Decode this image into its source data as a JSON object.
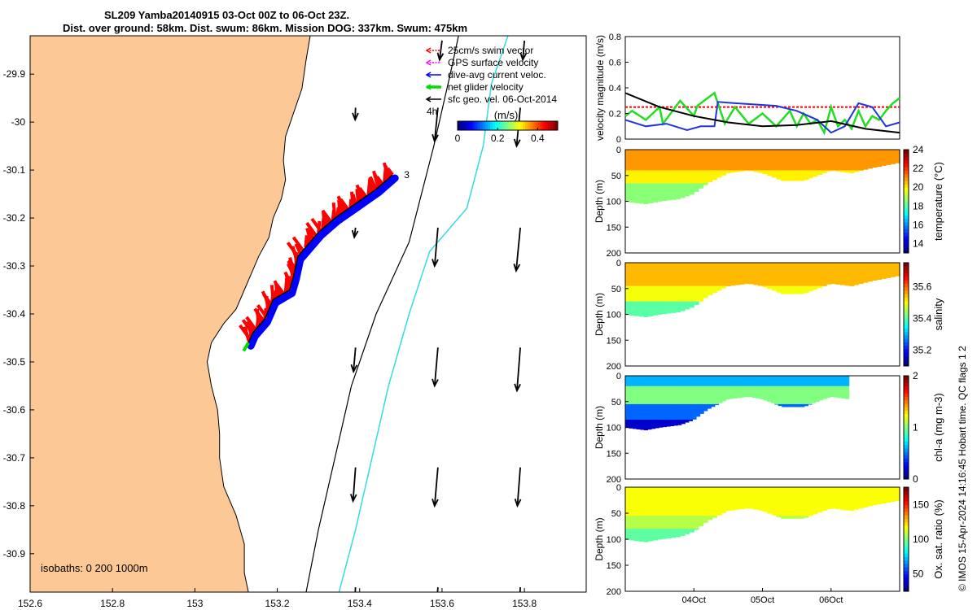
{
  "title": {
    "line1": "SL209 Yamba20140915 03-Oct 00Z to 06-Oct 23Z.",
    "line2": "Dist. over ground: 58km. Dist. swum: 86km. Mission DOG: 337km. Swum: 475km"
  },
  "copyright": "© IMOS 15-Apr-2024 14:16:45 Hobart time. QC flags 1  2",
  "chart_data": [
    {
      "type": "map",
      "name": "glider-track-map",
      "xlim": [
        152.6,
        153.95
      ],
      "ylim": [
        -30.98,
        -29.82
      ],
      "x_ticks": [
        152.6,
        152.8,
        153,
        153.2,
        153.4,
        153.6,
        153.8
      ],
      "x_tick_labels": [
        "152.6",
        "152.8",
        "153",
        "153.2",
        "153.4",
        "153.6",
        "153.8"
      ],
      "y_ticks": [
        -29.9,
        -30,
        -30.1,
        -30.2,
        -30.3,
        -30.4,
        -30.5,
        -30.6,
        -30.7,
        -30.8,
        -30.9
      ],
      "y_tick_labels": [
        "-29.9",
        "-30",
        "-30.1",
        "-30.2",
        "-30.3",
        "-30.4",
        "-30.5",
        "-30.6",
        "-30.7",
        "-30.8",
        "-30.9"
      ],
      "land_color": "#fbc896",
      "coastline": [
        [
          152.6,
          -29.82
        ],
        [
          153.28,
          -29.82
        ],
        [
          153.27,
          -29.87
        ],
        [
          153.26,
          -29.93
        ],
        [
          153.24,
          -29.98
        ],
        [
          153.22,
          -30.03
        ],
        [
          153.215,
          -30.08
        ],
        [
          153.22,
          -30.12
        ],
        [
          153.21,
          -30.16
        ],
        [
          153.19,
          -30.2
        ],
        [
          153.18,
          -30.24
        ],
        [
          153.155,
          -30.28
        ],
        [
          153.14,
          -30.31
        ],
        [
          153.12,
          -30.35
        ],
        [
          153.1,
          -30.39
        ],
        [
          153.07,
          -30.42
        ],
        [
          153.04,
          -30.46
        ],
        [
          153.03,
          -30.5
        ],
        [
          153.04,
          -30.55
        ],
        [
          153.055,
          -30.6
        ],
        [
          153.06,
          -30.65
        ],
        [
          153.06,
          -30.7
        ],
        [
          153.07,
          -30.76
        ],
        [
          153.1,
          -30.82
        ],
        [
          153.12,
          -30.88
        ],
        [
          153.12,
          -30.94
        ],
        [
          153.13,
          -30.98
        ],
        [
          152.6,
          -30.98
        ]
      ],
      "track_start_label": "3",
      "track_start": [
        153.48,
        -30.11
      ],
      "track": [
        [
          153.48,
          -30.11
        ],
        [
          153.44,
          -30.14
        ],
        [
          153.39,
          -30.17
        ],
        [
          153.34,
          -30.2
        ],
        [
          153.3,
          -30.23
        ],
        [
          153.25,
          -30.28
        ],
        [
          153.24,
          -30.32
        ],
        [
          153.23,
          -30.35
        ],
        [
          153.19,
          -30.37
        ],
        [
          153.17,
          -30.41
        ],
        [
          153.14,
          -30.44
        ],
        [
          153.13,
          -30.46
        ]
      ],
      "isobath_200": [
        [
          153.27,
          -30.98
        ],
        [
          153.3,
          -30.85
        ],
        [
          153.34,
          -30.7
        ],
        [
          153.38,
          -30.55
        ],
        [
          153.44,
          -30.4
        ],
        [
          153.52,
          -30.25
        ],
        [
          153.58,
          -30.05
        ],
        [
          153.62,
          -29.9
        ],
        [
          153.64,
          -29.82
        ]
      ],
      "isobath_1000": [
        [
          153.35,
          -30.98
        ],
        [
          153.39,
          -30.85
        ],
        [
          153.43,
          -30.7
        ],
        [
          153.47,
          -30.55
        ],
        [
          153.52,
          -30.4
        ],
        [
          153.57,
          -30.27
        ],
        [
          153.66,
          -30.18
        ],
        [
          153.7,
          -30.05
        ],
        [
          153.72,
          -29.92
        ],
        [
          153.76,
          -29.82
        ]
      ],
      "geo_vel_grid": [
        [
          153.6,
          -29.83,
          -0.006,
          -0.04
        ],
        [
          153.8,
          -29.83,
          -0.004,
          -0.04
        ],
        [
          153.39,
          -29.97,
          -0.001,
          -0.025
        ],
        [
          153.59,
          -29.97,
          -0.008,
          -0.07
        ],
        [
          153.79,
          -29.97,
          -0.009,
          -0.08
        ],
        [
          153.39,
          -30.22,
          -0.003,
          -0.02
        ],
        [
          153.59,
          -30.22,
          -0.008,
          -0.08
        ],
        [
          153.79,
          -30.22,
          -0.01,
          -0.09
        ],
        [
          153.39,
          -30.47,
          -0.005,
          -0.05
        ],
        [
          153.59,
          -30.47,
          -0.008,
          -0.08
        ],
        [
          153.79,
          -30.47,
          -0.008,
          -0.09
        ],
        [
          153.39,
          -30.72,
          -0.006,
          -0.07
        ],
        [
          153.59,
          -30.72,
          -0.008,
          -0.08
        ],
        [
          153.79,
          -30.72,
          -0.007,
          -0.08
        ],
        [
          153.39,
          -30.97,
          -0.007,
          -0.08
        ],
        [
          153.59,
          -30.97,
          -0.007,
          -0.08
        ],
        [
          153.79,
          -30.97,
          -0.005,
          -0.08
        ]
      ],
      "legend": [
        {
          "label": "25cm/s swim vector",
          "color": "#ff0000"
        },
        {
          "label": "GPS surface velocity",
          "color": "#ff00ff"
        },
        {
          "label": "dive-avg current veloc.",
          "color": "#0000ff"
        },
        {
          "label": "net glider velocity",
          "color": "#00dd00"
        },
        {
          "label": "sfc geo. vel. 06-Oct-2014",
          "color": "#000000"
        }
      ],
      "time_label": "4h",
      "colorbar": {
        "title": "(m/s)",
        "ticks": [
          0,
          0.2,
          0.4
        ],
        "tick_labels": [
          "0",
          "0.2",
          "0.4"
        ],
        "range": [
          0,
          0.5
        ]
      },
      "isobath_note": "isobaths: 0   200  1000m"
    },
    {
      "type": "line",
      "name": "velocity-magnitude",
      "ylabel": "velocity magnitude (m/s)",
      "ylim": [
        0,
        0.8
      ],
      "y_ticks": [
        0,
        0.2,
        0.4,
        0.6,
        0.8
      ],
      "y_tick_labels": [
        "0",
        "0.2",
        "0.4",
        "0.6",
        "0.8"
      ],
      "xlim": [
        0,
        4
      ],
      "series": [
        {
          "name": "swim",
          "color": "#ff0000",
          "x": [
            0,
            4
          ],
          "y": [
            0.25,
            0.25
          ]
        },
        {
          "name": "net glider velocity",
          "color": "#22dd22",
          "x": [
            0,
            0.1,
            0.3,
            0.5,
            0.55,
            0.8,
            1.0,
            1.05,
            1.2,
            1.3,
            1.4,
            1.45,
            1.6,
            1.8,
            2.0,
            2.2,
            2.4,
            2.5,
            2.6,
            2.7,
            2.8,
            2.9,
            3.0,
            3.1,
            3.2,
            3.3,
            3.4,
            3.5,
            3.6,
            3.7,
            3.8,
            3.9,
            4.0
          ],
          "y": [
            0.18,
            0.22,
            0.15,
            0.25,
            0.12,
            0.3,
            0.18,
            0.26,
            0.32,
            0.36,
            0.2,
            0.12,
            0.25,
            0.12,
            0.2,
            0.1,
            0.22,
            0.1,
            0.2,
            0.12,
            0.15,
            0.05,
            0.25,
            0.1,
            0.15,
            0.08,
            0.22,
            0.1,
            0.18,
            0.15,
            0.22,
            0.28,
            0.32
          ]
        },
        {
          "name": "dive-avg current",
          "color": "#2233dd",
          "x": [
            0,
            0.3,
            0.6,
            0.9,
            1.1,
            1.3,
            1.35,
            1.6,
            1.9,
            2.2,
            2.5,
            2.8,
            3.0,
            3.2,
            3.4,
            3.6,
            3.8,
            4.0
          ],
          "y": [
            0.15,
            0.1,
            0.12,
            0.07,
            0.1,
            0.1,
            0.29,
            0.28,
            0.27,
            0.26,
            0.22,
            0.15,
            0.05,
            0.1,
            0.28,
            0.25,
            0.1,
            0.13
          ]
        },
        {
          "name": "sfc geo vel",
          "color": "#000000",
          "x": [
            0,
            0.5,
            1.0,
            1.5,
            2.0,
            2.5,
            3.0,
            3.5,
            4.0
          ],
          "y": [
            0.36,
            0.25,
            0.18,
            0.13,
            0.1,
            0.11,
            0.14,
            0.08,
            0.05
          ]
        }
      ]
    },
    {
      "type": "heatmap",
      "name": "temperature-section",
      "ylabel": "Depth (m)",
      "ylim": [
        0,
        200
      ],
      "y_ticks": [
        0,
        50,
        100,
        150,
        200
      ],
      "y_tick_labels": [
        "0",
        "50",
        "100",
        "150",
        "200"
      ],
      "colorbar_label": "temperature (°C)",
      "colorbar_range": [
        13,
        24
      ],
      "colorbar_ticks": [
        14,
        16,
        18,
        20,
        22,
        24
      ],
      "colorbar_tick_labels": [
        "14",
        "16",
        "18",
        "20",
        "22",
        "24"
      ],
      "xlim": [
        0,
        4
      ],
      "end_fraction": 1.0,
      "bottom_x": [
        0,
        0.3,
        0.5,
        0.8,
        1.0,
        1.2,
        1.5,
        1.8,
        2.0,
        2.3,
        2.6,
        2.8,
        3.0,
        3.3,
        3.6,
        3.8,
        4.0
      ],
      "bottom_depth": [
        100,
        105,
        100,
        95,
        85,
        65,
        45,
        40,
        45,
        60,
        60,
        50,
        40,
        45,
        35,
        30,
        25
      ],
      "layers": [
        {
          "depth": 0,
          "value": 21
        },
        {
          "depth": 40,
          "value": 20
        },
        {
          "depth": 65,
          "value": 18.6
        }
      ]
    },
    {
      "type": "heatmap",
      "name": "salinity-section",
      "ylabel": "Depth (m)",
      "ylim": [
        0,
        200
      ],
      "y_ticks": [
        0,
        50,
        100,
        150,
        200
      ],
      "y_tick_labels": [
        "0",
        "50",
        "100",
        "150",
        "200"
      ],
      "colorbar_label": "salinity",
      "colorbar_range": [
        35.1,
        35.75
      ],
      "colorbar_ticks": [
        35.2,
        35.4,
        35.6
      ],
      "colorbar_tick_labels": [
        "35.2",
        "35.4",
        "35.6"
      ],
      "xlim": [
        0,
        4
      ],
      "end_fraction": 1.0,
      "bottom_x": [
        0,
        0.3,
        0.5,
        0.8,
        1.0,
        1.2,
        1.5,
        1.8,
        2.0,
        2.3,
        2.6,
        2.8,
        3.0,
        3.3,
        3.6,
        3.8,
        4.0
      ],
      "bottom_depth": [
        100,
        105,
        100,
        95,
        85,
        65,
        45,
        40,
        45,
        60,
        60,
        50,
        40,
        45,
        35,
        30,
        25
      ],
      "layers": [
        {
          "depth": 0,
          "value": 35.55
        },
        {
          "depth": 45,
          "value": 35.5
        },
        {
          "depth": 75,
          "value": 35.4
        }
      ]
    },
    {
      "type": "heatmap",
      "name": "chlorophyll-section",
      "ylabel": "Depth (m)",
      "ylim": [
        0,
        200
      ],
      "y_ticks": [
        0,
        50,
        100,
        150,
        200
      ],
      "y_tick_labels": [
        "0",
        "50",
        "100",
        "150",
        "200"
      ],
      "colorbar_label": "chl-a (mg m-3)",
      "colorbar_range": [
        0,
        2
      ],
      "colorbar_ticks": [
        0,
        1,
        2
      ],
      "colorbar_tick_labels": [
        "0",
        "1",
        "2"
      ],
      "xlim": [
        0,
        4
      ],
      "end_fraction": 0.815,
      "bottom_x": [
        0,
        0.3,
        0.5,
        0.8,
        1.0,
        1.2,
        1.5,
        1.8,
        2.0,
        2.3,
        2.6,
        2.8,
        3.0,
        3.26
      ],
      "bottom_depth": [
        100,
        105,
        100,
        95,
        85,
        65,
        45,
        40,
        45,
        60,
        60,
        50,
        40,
        45
      ],
      "layers": [
        {
          "depth": 0,
          "value": 0.6
        },
        {
          "depth": 20,
          "value": 1.0
        },
        {
          "depth": 55,
          "value": 0.45
        },
        {
          "depth": 85,
          "value": 0.15
        }
      ]
    },
    {
      "type": "heatmap",
      "name": "oxygen-section",
      "ylabel": "Depth (m)",
      "ylim": [
        0,
        200
      ],
      "y_ticks": [
        0,
        50,
        100,
        150,
        200
      ],
      "y_tick_labels": [
        "0",
        "50",
        "100",
        "150",
        "200"
      ],
      "colorbar_label": "Ox. sat. ratio (%)",
      "colorbar_range": [
        25,
        175
      ],
      "colorbar_ticks": [
        50,
        100,
        150
      ],
      "colorbar_tick_labels": [
        "50",
        "100",
        "150"
      ],
      "xlim": [
        0,
        4
      ],
      "end_fraction": 1.0,
      "bottom_x": [
        0,
        0.3,
        0.5,
        0.8,
        1.0,
        1.2,
        1.5,
        1.8,
        2.0,
        2.3,
        2.6,
        2.8,
        3.0,
        3.3,
        3.6,
        3.8,
        4.0
      ],
      "bottom_depth": [
        100,
        105,
        100,
        95,
        85,
        65,
        45,
        40,
        45,
        60,
        60,
        50,
        40,
        45,
        35,
        30,
        25
      ],
      "layers": [
        {
          "depth": 0,
          "value": 118
        },
        {
          "depth": 55,
          "value": 108
        },
        {
          "depth": 80,
          "value": 95
        }
      ],
      "x_ticks": [
        1,
        2,
        3
      ],
      "x_tick_labels": [
        "04Oct",
        "05Oct",
        "06Oct"
      ]
    }
  ]
}
